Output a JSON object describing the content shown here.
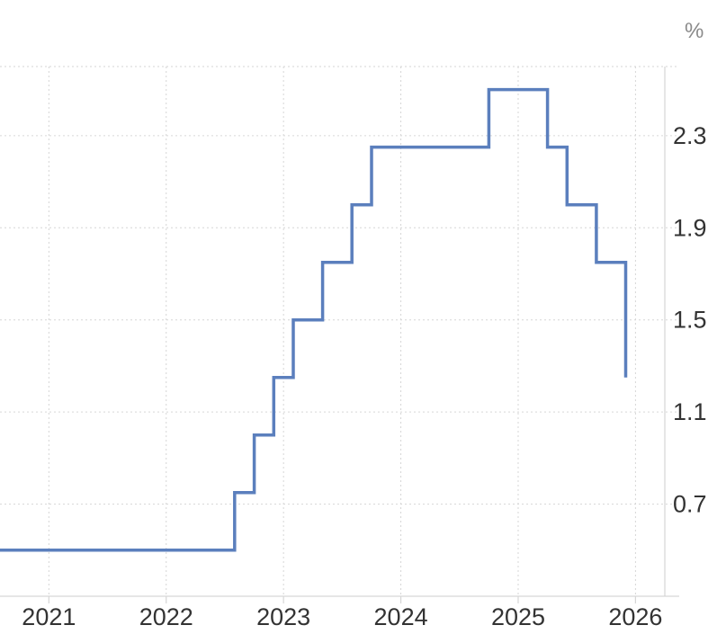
{
  "chart_data": {
    "type": "line",
    "step": true,
    "unit": "%",
    "x_ticks": [
      "2021",
      "2022",
      "2023",
      "2024",
      "2025",
      "2026"
    ],
    "y_ticks": [
      "0.7",
      "1.1",
      "1.5",
      "1.9",
      "2.3"
    ],
    "xlim": [
      "2020-08",
      "2026-04"
    ],
    "ylim": [
      0.3,
      2.6
    ],
    "grid": true,
    "y_axis_side": "right",
    "color": "#5b7fbd",
    "series": [
      {
        "x": [
          "2020-08",
          "2022-08",
          "2022-10",
          "2022-12",
          "2023-02",
          "2023-05",
          "2023-08",
          "2023-10",
          "2024-10",
          "2025-04",
          "2025-06",
          "2025-09",
          "2025-12",
          "2025-12"
        ],
        "values": [
          0.5,
          0.75,
          1.0,
          1.25,
          1.5,
          1.75,
          2.0,
          2.25,
          2.5,
          2.25,
          2.0,
          1.75,
          1.5,
          1.25
        ]
      }
    ]
  }
}
